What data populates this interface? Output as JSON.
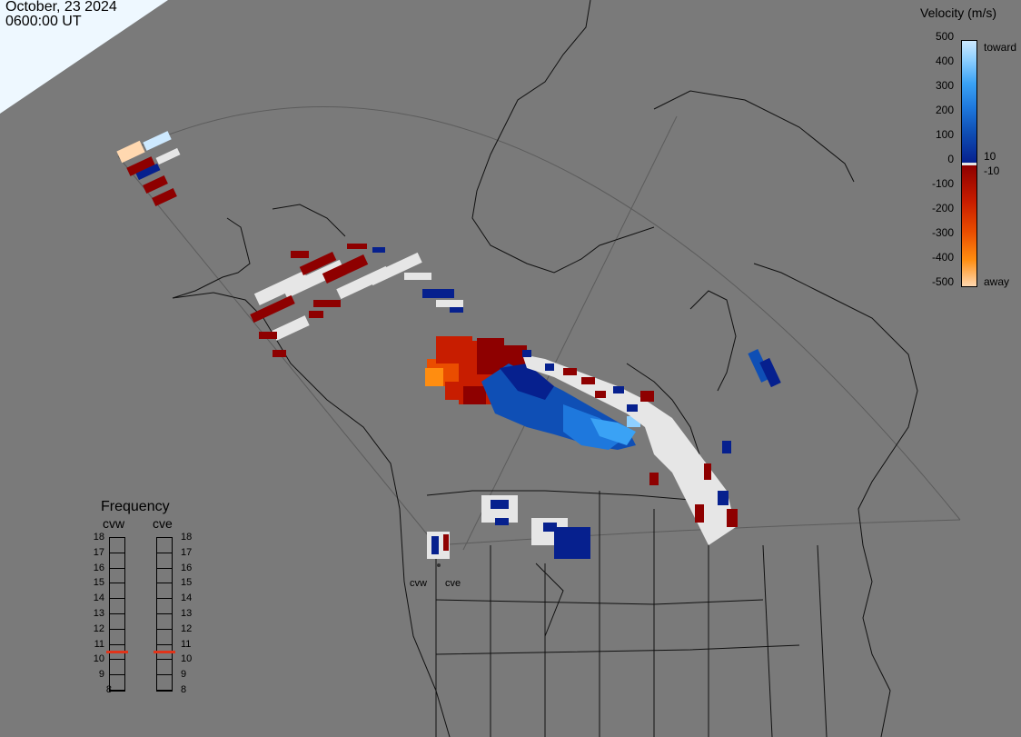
{
  "header": {
    "date": "October, 23 2024",
    "time": "0600:00 UT"
  },
  "legend": {
    "title": "Velocity (m/s)",
    "scale_labels": [
      "500",
      "400",
      "300",
      "200",
      "100",
      "0",
      "-100",
      "-200",
      "-300",
      "-400",
      "-500"
    ],
    "toward_label": "toward",
    "away_label": "away",
    "pos_threshold": "10",
    "neg_threshold": "-10",
    "colors": [
      "#cde9ff",
      "#8fd0ff",
      "#3aa2f5",
      "#1e78dd",
      "#0f4fb5",
      "#06208e",
      "#e6e6e6",
      "#8e0000",
      "#c81d00",
      "#ea4d00",
      "#ff8d10",
      "#ffd8b0"
    ]
  },
  "frequency": {
    "title": "Frequency",
    "radars": [
      {
        "name": "cvw",
        "frequency": 11
      },
      {
        "name": "cve",
        "frequency": 11
      }
    ],
    "scale": [
      "18",
      "17",
      "16",
      "15",
      "14",
      "13",
      "12",
      "11",
      "10",
      "9",
      "8"
    ],
    "marker_color": "#e0341a"
  },
  "sites": [
    "cvw",
    "cve"
  ]
}
